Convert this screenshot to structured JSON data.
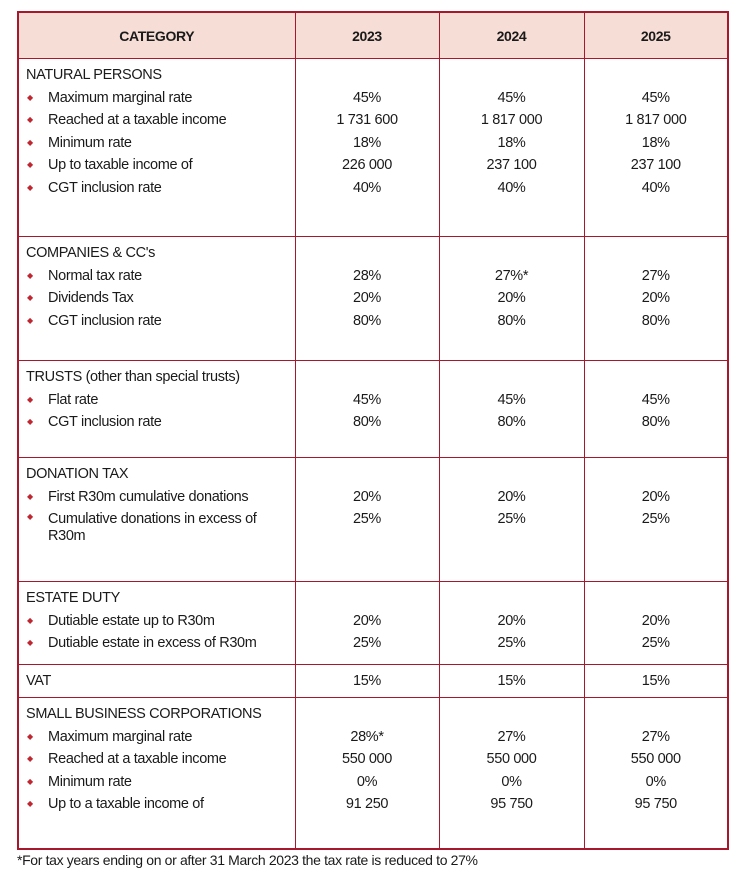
{
  "header": {
    "category": "CATEGORY",
    "years": [
      "2023",
      "2024",
      "2025"
    ]
  },
  "bullet_color": "#c0262f",
  "border_color": "#a8182c",
  "header_bg": "#f6ddd6",
  "sections": [
    {
      "title": "NATURAL PERSONS",
      "items": [
        {
          "label": "Maximum marginal rate",
          "values": [
            "45%",
            "45%",
            "45%"
          ]
        },
        {
          "label": "Reached at a taxable income",
          "values": [
            "1 731 600",
            "1 817 000",
            "1 817 000"
          ]
        },
        {
          "label": "Minimum rate",
          "values": [
            "18%",
            "18%",
            "18%"
          ]
        },
        {
          "label": "Up to taxable income of",
          "values": [
            "226 000",
            "237 100",
            "237 100"
          ]
        },
        {
          "label": "CGT inclusion rate",
          "values": [
            "40%",
            "40%",
            "40%"
          ]
        }
      ]
    },
    {
      "title": "COMPANIES & CC's",
      "items": [
        {
          "label": "Normal tax rate",
          "values": [
            "28%",
            "27%*",
            "27%"
          ]
        },
        {
          "label": "Dividends Tax",
          "values": [
            "20%",
            "20%",
            "20%"
          ]
        },
        {
          "label": "CGT inclusion rate",
          "values": [
            "80%",
            "80%",
            "80%"
          ]
        }
      ]
    },
    {
      "title": "TRUSTS (other than special trusts)",
      "items": [
        {
          "label": "Flat rate",
          "values": [
            "45%",
            "45%",
            "45%"
          ]
        },
        {
          "label": "CGT inclusion rate",
          "values": [
            "80%",
            "80%",
            "80%"
          ]
        }
      ]
    },
    {
      "title": "DONATION TAX",
      "items": [
        {
          "label": "First R30m cumulative donations",
          "values": [
            "20%",
            "20%",
            "20%"
          ]
        },
        {
          "label": "Cumulative donations in excess of R30m",
          "values": [
            "25%",
            "25%",
            "25%"
          ]
        }
      ]
    },
    {
      "title": "ESTATE DUTY",
      "items": [
        {
          "label": "Dutiable estate up to R30m",
          "values": [
            "20%",
            "20%",
            "20%"
          ]
        },
        {
          "label": "Dutiable estate in excess of R30m",
          "values": [
            "25%",
            "25%",
            "25%"
          ]
        }
      ]
    },
    {
      "title": "VAT",
      "values": [
        "15%",
        "15%",
        "15%"
      ]
    },
    {
      "title": "SMALL BUSINESS CORPORATIONS",
      "items": [
        {
          "label": "Maximum marginal rate",
          "values": [
            "28%*",
            "27%",
            "27%"
          ]
        },
        {
          "label": "Reached at a taxable income",
          "values": [
            "550 000",
            "550 000",
            "550 000"
          ]
        },
        {
          "label": "Minimum rate",
          "values": [
            "0%",
            "0%",
            "0%"
          ]
        },
        {
          "label": "Up to a taxable income of",
          "values": [
            "91 250",
            "95 750",
            "95 750"
          ]
        }
      ]
    }
  ],
  "footnote": "*For tax years ending on or after 31 March 2023 the tax rate is reduced to 27%"
}
